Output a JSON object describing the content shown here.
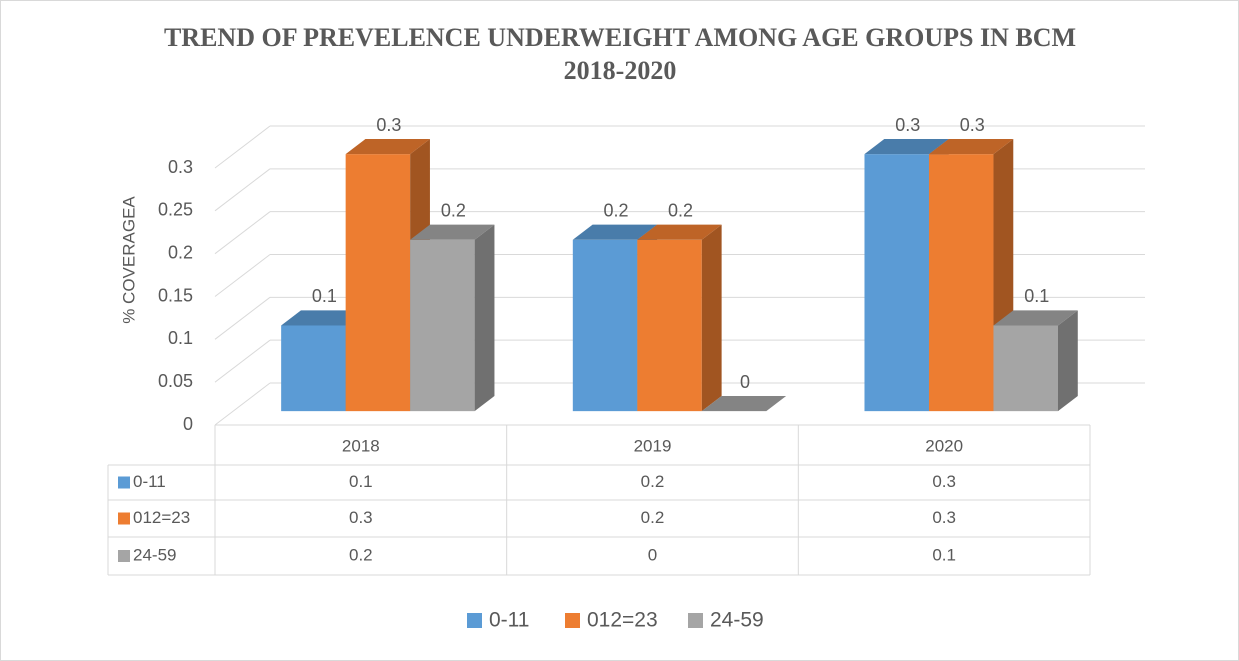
{
  "chart_data": {
    "type": "bar",
    "title": "TREND OF PREVELENCE UNDERWEIGHT AMONG AGE GROUPS  IN BCM 2018-2020",
    "y_label": "% COVERAGEA",
    "categories": [
      "2018",
      "2019",
      "2020"
    ],
    "series": [
      {
        "name": "0-11",
        "color": "#5b9bd5",
        "values": [
          0.1,
          0.2,
          0.3
        ]
      },
      {
        "name": "012=23",
        "color": "#ed7d31",
        "values": [
          0.3,
          0.2,
          0.3
        ]
      },
      {
        "name": "24-59",
        "color": "#a5a5a5",
        "values": [
          0.2,
          0,
          0.1
        ]
      }
    ],
    "ylim": [
      0,
      0.3
    ],
    "yticks": [
      0,
      0.05,
      0.1,
      0.15,
      0.2,
      0.25,
      0.3
    ],
    "grid": true,
    "legend": "bottom"
  }
}
